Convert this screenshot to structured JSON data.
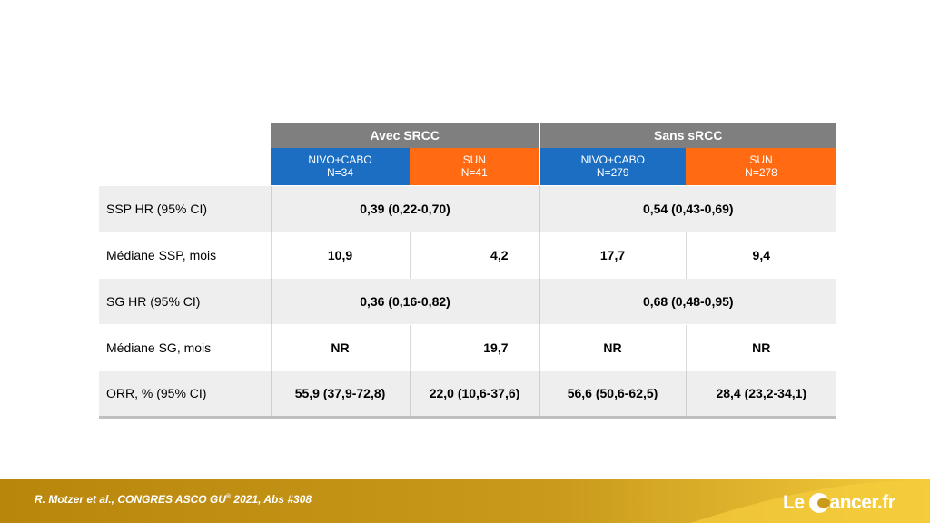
{
  "table": {
    "groups": [
      "Avec SRCC",
      "Sans sRCC"
    ],
    "arms": [
      {
        "name": "NIVO+CABO",
        "n": "N=34"
      },
      {
        "name": "SUN",
        "n": "N=41"
      },
      {
        "name": "NIVO+CABO",
        "n": "N=279"
      },
      {
        "name": "SUN",
        "n": "N=278"
      }
    ],
    "rows": [
      {
        "label": "SSP HR (95% CI)",
        "merged": true,
        "values": [
          "0,39 (0,22-0,70)",
          "0,54 (0,43-0,69)"
        ]
      },
      {
        "label": "Médiane SSP, mois",
        "merged": false,
        "values": [
          "10,9",
          "4,2",
          "17,7",
          "9,4"
        ]
      },
      {
        "label": "SG HR (95% CI)",
        "merged": true,
        "values": [
          "0,36 (0,16-0,82)",
          "0,68 (0,48-0,95)"
        ]
      },
      {
        "label": "Médiane SG, mois",
        "merged": false,
        "values": [
          "NR",
          "19,7",
          "NR",
          "NR"
        ]
      },
      {
        "label": "ORR, % (95% CI)",
        "merged": false,
        "values": [
          "55,9 (37,9-72,8)",
          "22,0 (10,6-37,6)",
          "56,6 (50,6-62,5)",
          "28,4 (23,2-34,1)"
        ]
      }
    ]
  },
  "footer": {
    "citation_prefix": "R. Motzer et al., CONGRES ASCO GU",
    "citation_sup": "®",
    "citation_suffix": " 2021, Abs #308",
    "logo_left": "Le",
    "logo_right": "ancer.fr"
  },
  "colors": {
    "group_header": "#7f7f7f",
    "nivo_cabo": "#1b6ec2",
    "sun": "#ff6a13",
    "footer_gold": "#c99a1c",
    "footer_yellow": "#f4cc3c"
  }
}
